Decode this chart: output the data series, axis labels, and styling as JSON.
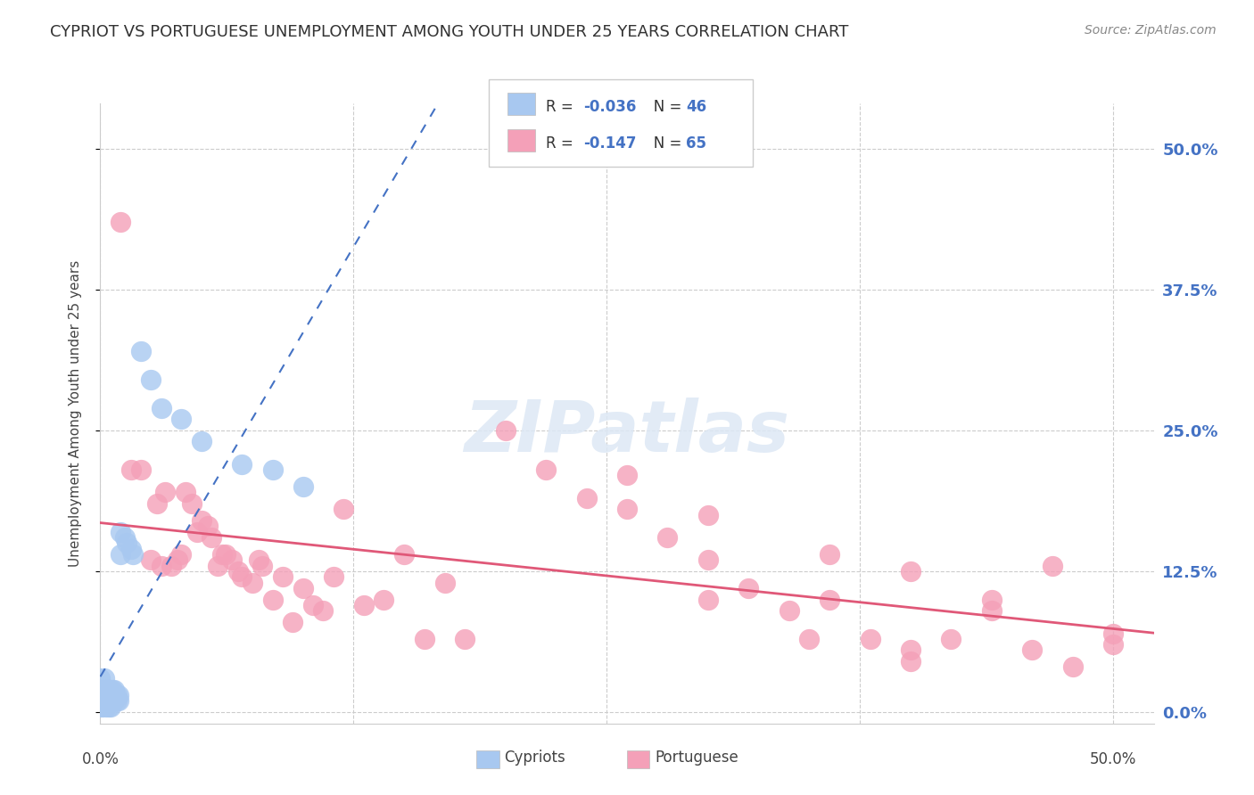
{
  "title": "CYPRIOT VS PORTUGUESE UNEMPLOYMENT AMONG YOUTH UNDER 25 YEARS CORRELATION CHART",
  "source": "Source: ZipAtlas.com",
  "ylabel": "Unemployment Among Youth under 25 years",
  "ytick_labels": [
    "0.0%",
    "12.5%",
    "25.0%",
    "37.5%",
    "50.0%"
  ],
  "ytick_values": [
    0.0,
    0.125,
    0.25,
    0.375,
    0.5
  ],
  "xtick_values": [
    0.0,
    0.125,
    0.25,
    0.375,
    0.5
  ],
  "xlim": [
    0.0,
    0.52
  ],
  "ylim": [
    -0.01,
    0.54
  ],
  "cypriot_color": "#a8c8f0",
  "portuguese_color": "#f4a0b8",
  "cypriot_line_color": "#4472c4",
  "portuguese_line_color": "#e05878",
  "cypriot_x": [
    0.0,
    0.0,
    0.0,
    0.0,
    0.001,
    0.001,
    0.001,
    0.002,
    0.002,
    0.002,
    0.003,
    0.003,
    0.003,
    0.003,
    0.004,
    0.004,
    0.004,
    0.004,
    0.005,
    0.005,
    0.005,
    0.005,
    0.006,
    0.006,
    0.006,
    0.007,
    0.007,
    0.007,
    0.008,
    0.008,
    0.009,
    0.009,
    0.01,
    0.01,
    0.012,
    0.013,
    0.015,
    0.016,
    0.02,
    0.025,
    0.03,
    0.04,
    0.05,
    0.07,
    0.085,
    0.1
  ],
  "cypriot_y": [
    0.005,
    0.01,
    0.02,
    0.03,
    0.005,
    0.01,
    0.02,
    0.01,
    0.02,
    0.03,
    0.005,
    0.01,
    0.015,
    0.02,
    0.005,
    0.01,
    0.015,
    0.02,
    0.005,
    0.01,
    0.015,
    0.02,
    0.01,
    0.015,
    0.02,
    0.01,
    0.015,
    0.02,
    0.01,
    0.015,
    0.01,
    0.015,
    0.14,
    0.16,
    0.155,
    0.15,
    0.145,
    0.14,
    0.32,
    0.295,
    0.27,
    0.26,
    0.24,
    0.22,
    0.215,
    0.2
  ],
  "portuguese_x": [
    0.01,
    0.015,
    0.02,
    0.025,
    0.028,
    0.03,
    0.032,
    0.035,
    0.038,
    0.04,
    0.042,
    0.045,
    0.048,
    0.05,
    0.053,
    0.055,
    0.058,
    0.06,
    0.062,
    0.065,
    0.068,
    0.07,
    0.075,
    0.078,
    0.08,
    0.085,
    0.09,
    0.095,
    0.1,
    0.105,
    0.11,
    0.115,
    0.12,
    0.13,
    0.14,
    0.15,
    0.16,
    0.17,
    0.18,
    0.2,
    0.22,
    0.24,
    0.26,
    0.28,
    0.3,
    0.32,
    0.34,
    0.36,
    0.38,
    0.4,
    0.42,
    0.44,
    0.46,
    0.48,
    0.5,
    0.26,
    0.3,
    0.36,
    0.4,
    0.44,
    0.47,
    0.5,
    0.3,
    0.35,
    0.4
  ],
  "portuguese_y": [
    0.435,
    0.215,
    0.215,
    0.135,
    0.185,
    0.13,
    0.195,
    0.13,
    0.135,
    0.14,
    0.195,
    0.185,
    0.16,
    0.17,
    0.165,
    0.155,
    0.13,
    0.14,
    0.14,
    0.135,
    0.125,
    0.12,
    0.115,
    0.135,
    0.13,
    0.1,
    0.12,
    0.08,
    0.11,
    0.095,
    0.09,
    0.12,
    0.18,
    0.095,
    0.1,
    0.14,
    0.065,
    0.115,
    0.065,
    0.25,
    0.215,
    0.19,
    0.18,
    0.155,
    0.135,
    0.11,
    0.09,
    0.1,
    0.065,
    0.045,
    0.065,
    0.1,
    0.055,
    0.04,
    0.07,
    0.21,
    0.175,
    0.14,
    0.125,
    0.09,
    0.13,
    0.06,
    0.1,
    0.065,
    0.055
  ]
}
